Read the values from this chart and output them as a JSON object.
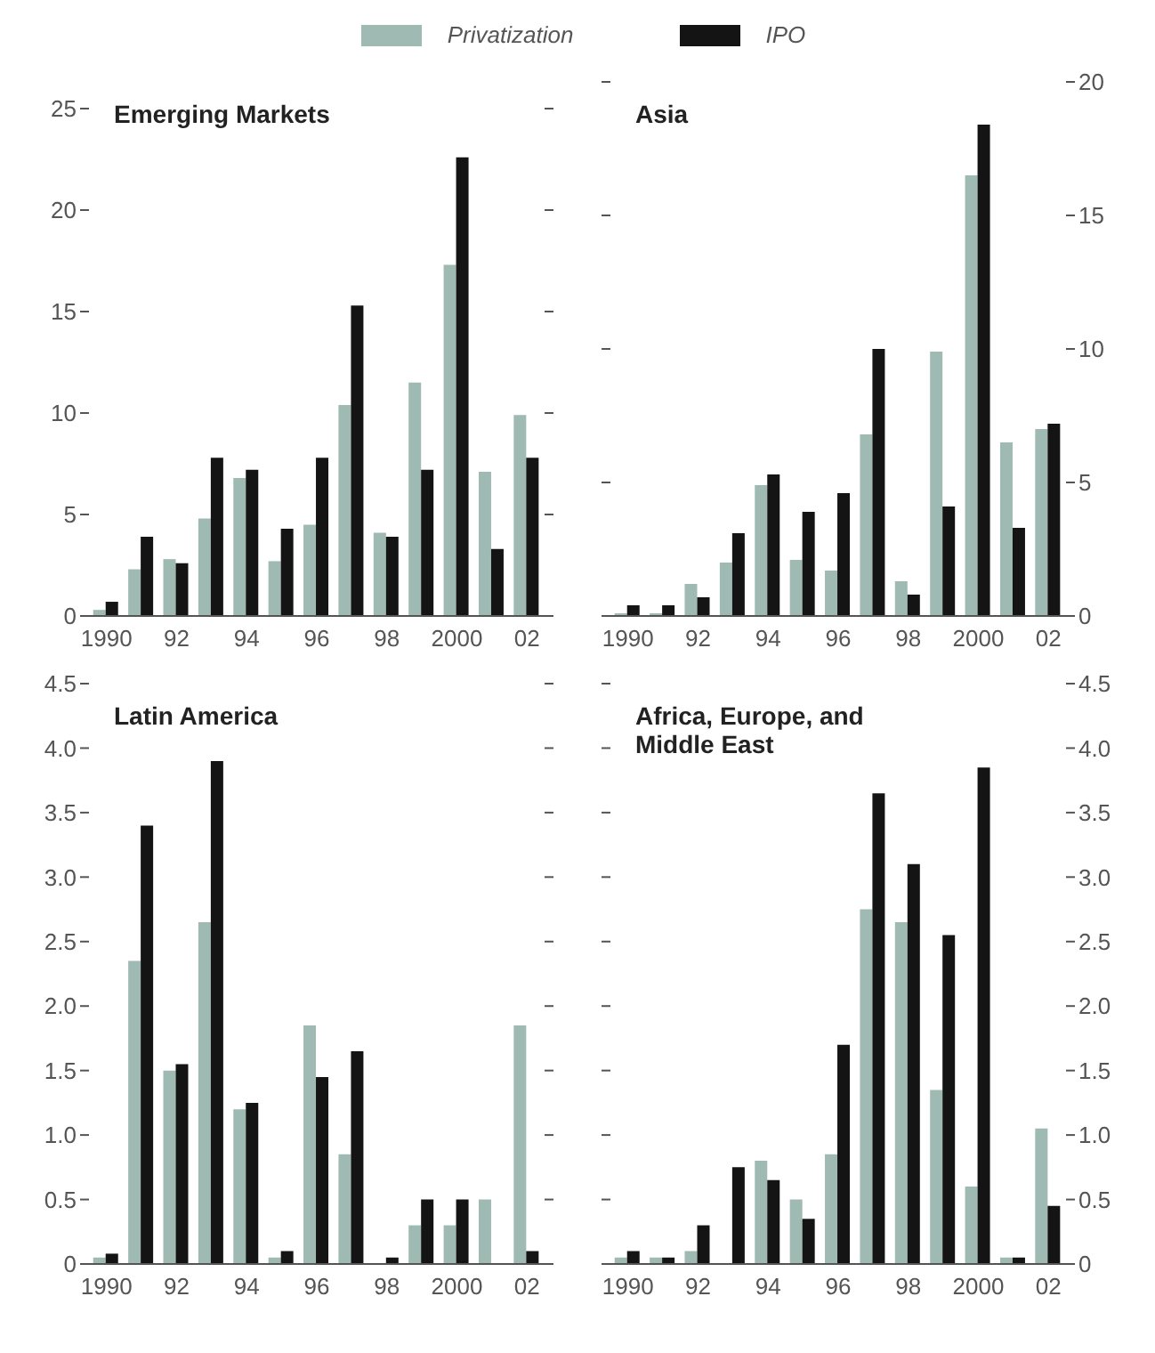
{
  "chart_data": [
    {
      "type": "bar",
      "title": "Emerging Markets",
      "legend": "top",
      "categories": [
        "1990",
        null,
        "92",
        null,
        "94",
        null,
        "96",
        null,
        "98",
        null,
        "2000",
        null,
        "02"
      ],
      "ylim": [
        0,
        25
      ],
      "yticks": [
        0,
        5,
        10,
        15,
        20,
        25
      ],
      "series": [
        {
          "name": "Privatization",
          "color": "#9fbab2",
          "values": [
            0.3,
            2.3,
            2.8,
            4.8,
            6.8,
            2.7,
            4.5,
            10.4,
            4.1,
            11.5,
            17.3,
            7.1,
            9.9
          ]
        },
        {
          "name": "IPO",
          "color": "#141414",
          "values": [
            0.7,
            3.9,
            2.6,
            7.8,
            7.2,
            4.3,
            7.8,
            15.3,
            3.9,
            7.2,
            22.6,
            3.3,
            7.8
          ]
        }
      ]
    },
    {
      "type": "bar",
      "title": "Asia",
      "categories": [
        "1990",
        null,
        "92",
        null,
        "94",
        null,
        "96",
        null,
        "98",
        null,
        "2000",
        null,
        "02"
      ],
      "y2lim": [
        0,
        20
      ],
      "y2ticks": [
        0,
        5,
        10,
        15,
        20
      ],
      "series": [
        {
          "color": "#9fbab2",
          "axis": "y2",
          "values": [
            0.1,
            0.1,
            1.2,
            2.0,
            4.9,
            2.1,
            1.7,
            6.8,
            1.3,
            9.9,
            16.5,
            6.5,
            7.0
          ]
        },
        {
          "color": "#141414",
          "axis": "y2",
          "values": [
            0.4,
            0.4,
            0.7,
            3.1,
            5.3,
            3.9,
            4.6,
            10.0,
            0.8,
            4.1,
            18.4,
            3.3,
            7.2
          ]
        }
      ]
    },
    {
      "type": "bar",
      "title": "Latin America",
      "categories": [
        "1990",
        null,
        "92",
        null,
        "94",
        null,
        "96",
        null,
        "98",
        null,
        "2000",
        null,
        "02"
      ],
      "ylim": [
        0,
        4.5
      ],
      "yticks": [
        0,
        0.5,
        {
          "value": 1,
          "label": "1.0"
        },
        1.5,
        {
          "value": 2,
          "label": "2.0"
        },
        2.5,
        {
          "value": 3,
          "label": "3.0"
        },
        3.5,
        {
          "value": 4,
          "label": "4.0"
        },
        4.5
      ],
      "series": [
        {
          "color": "#9fbab2",
          "values": [
            0.05,
            2.35,
            1.5,
            2.65,
            1.2,
            0.05,
            1.85,
            0.85,
            0,
            0.3,
            0.3,
            0.5,
            1.85
          ]
        },
        {
          "color": "#141414",
          "values": [
            0.08,
            3.4,
            1.55,
            3.9,
            1.25,
            0.1,
            1.45,
            1.65,
            0.05,
            0.5,
            0.5,
            0,
            0.1
          ]
        }
      ]
    },
    {
      "type": "bar",
      "title": "Africa, Europe, and Middle East",
      "categories": [
        "1990",
        null,
        "92",
        null,
        "94",
        null,
        "96",
        null,
        "98",
        null,
        "2000",
        null,
        "02"
      ],
      "y2lim": [
        0,
        4.5
      ],
      "y2ticks": [
        0,
        0.5,
        {
          "value": 1,
          "label": "1.0"
        },
        1.5,
        {
          "value": 2,
          "label": "2.0"
        },
        2.5,
        {
          "value": 3,
          "label": "3.0"
        },
        3.5,
        {
          "value": 4,
          "label": "4.0"
        },
        4.5
      ],
      "series": [
        {
          "color": "#9fbab2",
          "axis": "y2",
          "values": [
            0.05,
            0.05,
            0.1,
            0,
            0.8,
            0.5,
            0.85,
            2.75,
            2.65,
            1.35,
            0.6,
            0.05,
            1.05
          ]
        },
        {
          "color": "#141414",
          "axis": "y2",
          "values": [
            0.1,
            0.05,
            0.3,
            0.75,
            0.65,
            0.35,
            1.7,
            3.65,
            3.1,
            2.55,
            3.85,
            0.05,
            0.45
          ]
        }
      ]
    }
  ]
}
